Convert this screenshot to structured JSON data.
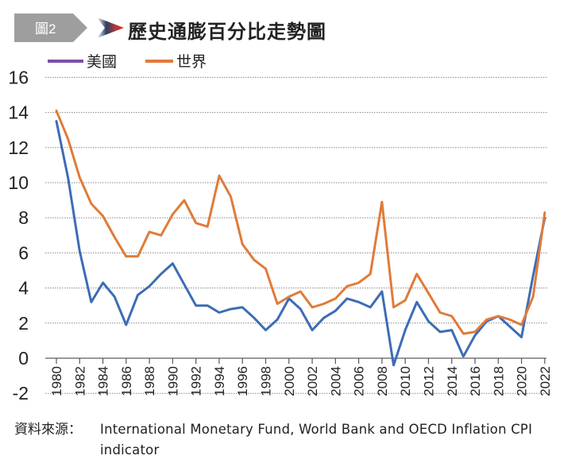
{
  "header": {
    "badge_label": "圖2",
    "title": "歷史通膨百分比走勢圖"
  },
  "source": {
    "label": "資料來源：",
    "text": "International Monetary Fund, World Bank and OECD Inflation CPI indicator"
  },
  "colors": {
    "us_line": "#3d6cb5",
    "us_legend": "#7b4fa8",
    "world": "#e07b39",
    "badge": "#9e9e9e",
    "grid": "#888888",
    "axis": "#999999"
  },
  "chart_data": {
    "type": "line",
    "title": "歷史通膨百分比走勢圖",
    "xlabel": "",
    "ylabel": "",
    "ylim": [
      -2,
      16
    ],
    "yticks": [
      16,
      14,
      12,
      10,
      8,
      6,
      4,
      2,
      0,
      -2
    ],
    "grid": true,
    "legend_position": "top-left",
    "x": [
      1980,
      1981,
      1982,
      1983,
      1984,
      1985,
      1986,
      1987,
      1988,
      1989,
      1990,
      1991,
      1992,
      1993,
      1994,
      1995,
      1996,
      1997,
      1998,
      1999,
      2000,
      2001,
      2002,
      2003,
      2004,
      2005,
      2006,
      2007,
      2008,
      2009,
      2010,
      2011,
      2012,
      2013,
      2014,
      2015,
      2016,
      2017,
      2018,
      2019,
      2020,
      2021,
      2022
    ],
    "xticks": [
      "1980",
      "1982",
      "1984",
      "1986",
      "1988",
      "1990",
      "1992",
      "1994",
      "1996",
      "1998",
      "2000",
      "2002",
      "2004",
      "2006",
      "2008",
      "2010",
      "2012",
      "2014",
      "2016",
      "2018",
      "2020",
      "2022"
    ],
    "series": [
      {
        "name": "美國",
        "values": [
          13.5,
          10.3,
          6.1,
          3.2,
          4.3,
          3.5,
          1.9,
          3.6,
          4.1,
          4.8,
          5.4,
          4.2,
          3.0,
          3.0,
          2.6,
          2.8,
          2.9,
          2.3,
          1.6,
          2.2,
          3.4,
          2.8,
          1.6,
          2.3,
          2.7,
          3.4,
          3.2,
          2.9,
          3.8,
          -0.4,
          1.6,
          3.2,
          2.1,
          1.5,
          1.6,
          0.1,
          1.3,
          2.1,
          2.4,
          1.8,
          1.2,
          4.7,
          8.0
        ]
      },
      {
        "name": "世界",
        "values": [
          14.1,
          12.5,
          10.3,
          8.8,
          8.1,
          6.9,
          5.8,
          5.8,
          7.2,
          7.0,
          8.2,
          9.0,
          7.7,
          7.5,
          10.4,
          9.2,
          6.5,
          5.6,
          5.1,
          3.1,
          3.5,
          3.8,
          2.9,
          3.1,
          3.4,
          4.1,
          4.3,
          4.8,
          8.9,
          2.9,
          3.3,
          4.8,
          3.7,
          2.6,
          2.4,
          1.4,
          1.5,
          2.2,
          2.4,
          2.2,
          1.9,
          3.5,
          8.3
        ]
      }
    ]
  }
}
